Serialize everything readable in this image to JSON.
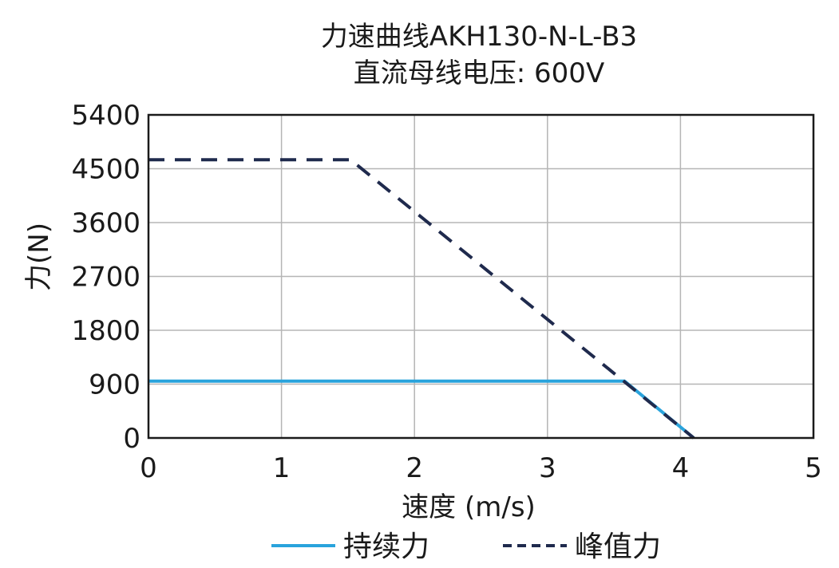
{
  "chart_data": {
    "type": "line",
    "title": "力速曲线AKH130-N-L-B3",
    "subtitle": "直流母线电压: 600V",
    "xlabel": "速度 (m/s)",
    "ylabel": "力(N)",
    "xlim": [
      0,
      5
    ],
    "ylim": [
      0,
      5400
    ],
    "xticks": [
      0,
      1,
      2,
      3,
      4,
      5
    ],
    "yticks": [
      0,
      900,
      1800,
      2700,
      3600,
      4500,
      5400
    ],
    "xtick_labels": [
      "0",
      "1",
      "2",
      "3",
      "4",
      "5"
    ],
    "ytick_labels": [
      "0",
      "900",
      "1800",
      "2700",
      "3600",
      "4500",
      "5400"
    ],
    "grid": true,
    "legend_position": "bottom",
    "series": [
      {
        "name": "持续力",
        "color": "#29a3dc",
        "style": "solid",
        "x": [
          0,
          3.58,
          4.1
        ],
        "y": [
          950,
          950,
          0
        ]
      },
      {
        "name": "峰值力",
        "color": "#1f2a4d",
        "style": "dashed",
        "x": [
          0,
          1.52,
          4.1
        ],
        "y": [
          4650,
          4650,
          0
        ]
      }
    ]
  }
}
